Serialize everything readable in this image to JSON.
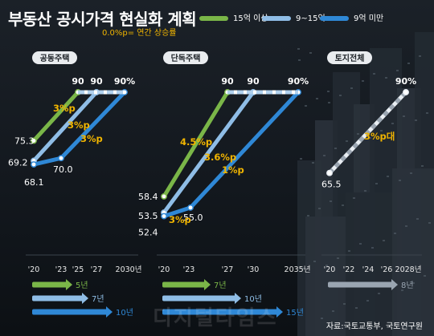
{
  "header": {
    "title": "부동산 공시가격 현실화 계획",
    "note": "0.0%p= 연간 상승률"
  },
  "legend": [
    {
      "label": "15억 이상",
      "color": "#7ab648"
    },
    {
      "label": "9~15억",
      "color": "#8fbde6"
    },
    {
      "label": "9억 미만",
      "color": "#2f88d6"
    }
  ],
  "source": "자료:국토교통부, 국토연구원",
  "watermark": "디지털타임스",
  "colors": {
    "green": "#7ab648",
    "light": "#8fbde6",
    "blue": "#2f88d6",
    "gray": "#9aa5b1",
    "rate": "#f0b400"
  },
  "chart_data": [
    {
      "type": "line",
      "panel": "공동주택",
      "x_ticks": [
        "'20",
        "'23",
        "'25",
        "'27",
        "2030년"
      ],
      "series": [
        {
          "name": "15억 이상",
          "x": [
            "'20",
            "'25"
          ],
          "values": [
            75.3,
            90
          ],
          "rate": "3%p",
          "duration": "5년"
        },
        {
          "name": "9~15억",
          "x": [
            "'20",
            "'27"
          ],
          "values": [
            69.2,
            90
          ],
          "rate": "3%p",
          "duration": "7년"
        },
        {
          "name": "9억 미만",
          "x": [
            "'20",
            "'23",
            "2030"
          ],
          "values": [
            68.1,
            70.0,
            90
          ],
          "rate": "3%p",
          "duration": "10년"
        }
      ],
      "top_labels": [
        "90",
        "90",
        "90%"
      ],
      "value_labels": [
        "75.3",
        "69.2",
        "68.1",
        "70.0"
      ]
    },
    {
      "type": "line",
      "panel": "단독주택",
      "x_ticks": [
        "'20",
        "'23",
        "'27",
        "'30",
        "2035년"
      ],
      "series": [
        {
          "name": "15억 이상",
          "x": [
            "'20",
            "'27"
          ],
          "values": [
            58.4,
            90
          ],
          "rate": "4.5%p",
          "duration": "7년"
        },
        {
          "name": "9~15억",
          "x": [
            "'20",
            "'30"
          ],
          "values": [
            53.5,
            90
          ],
          "rate": "3.6%p",
          "duration": "10년"
        },
        {
          "name": "9억 미만",
          "x": [
            "'20",
            "'23",
            "2035"
          ],
          "values": [
            52.4,
            55.0,
            90
          ],
          "rate": [
            "1%p",
            "3%p"
          ],
          "duration": "15년"
        }
      ],
      "top_labels": [
        "90",
        "90",
        "90%"
      ],
      "value_labels": [
        "58.4",
        "53.5",
        "52.4",
        "55.0"
      ]
    },
    {
      "type": "line",
      "panel": "토지전체",
      "x_ticks": [
        "'20",
        "'22",
        "'24",
        "'26",
        "2028년"
      ],
      "series": [
        {
          "name": "토지전체",
          "x": [
            "'20",
            "2028"
          ],
          "values": [
            65.5,
            90
          ],
          "rate": "3%p대",
          "duration": "8년"
        }
      ],
      "top_labels": [
        "90%"
      ],
      "value_labels": [
        "65.5"
      ]
    }
  ]
}
